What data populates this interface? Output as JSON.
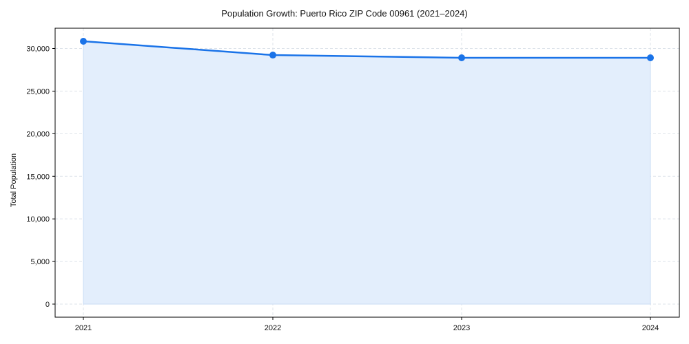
{
  "chart_data": {
    "type": "line",
    "title": "Population Growth: Puerto Rico ZIP Code 00961 (2021–2024)",
    "xlabel": "",
    "ylabel": "Total Population",
    "categories": [
      "2021",
      "2022",
      "2023",
      "2024"
    ],
    "series": [
      {
        "name": "Total Population",
        "values": [
          30850,
          29230,
          28910,
          28910
        ],
        "color": "#1a73e8",
        "fill": "#e3eefc",
        "markers": true,
        "area_fill": true
      }
    ],
    "y_ticks": [
      0,
      5000,
      10000,
      15000,
      20000,
      25000,
      30000
    ],
    "y_tick_labels": [
      "0",
      "5,000",
      "10,000",
      "15,000",
      "20,000",
      "25,000",
      "30,000"
    ],
    "ylim": [
      -1550,
      32400
    ],
    "grid": true,
    "legend": null
  }
}
